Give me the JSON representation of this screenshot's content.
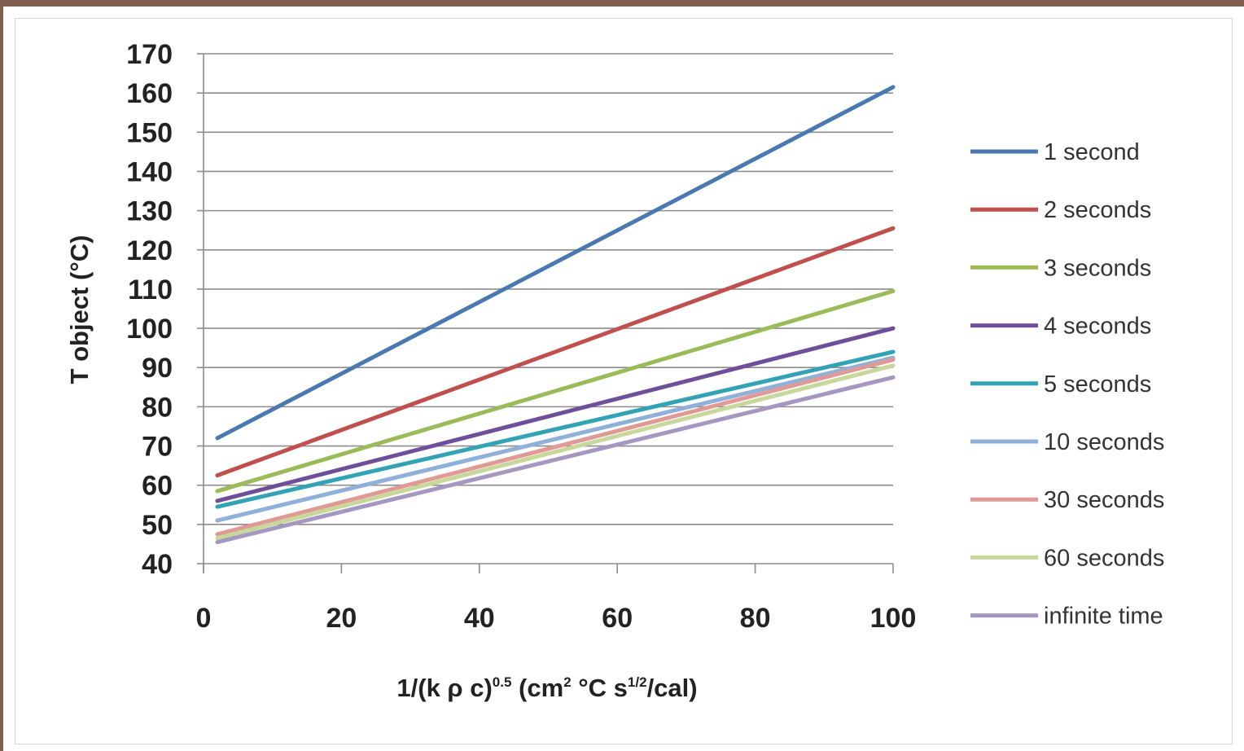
{
  "chart_data": {
    "type": "line",
    "xlabel_parts": {
      "a": "1/(k ρ c)",
      "a_sup": "0.5",
      "b": " (cm",
      "b_sup": "2",
      "c": " °C s",
      "c_sup": "1/2",
      "d": "/cal)"
    },
    "ylabel": "T object (°C)",
    "xlim": [
      0,
      100
    ],
    "ylim": [
      40,
      170
    ],
    "x_ticks": [
      "0",
      "20",
      "40",
      "60",
      "80",
      "100"
    ],
    "y_ticks": [
      "40",
      "50",
      "60",
      "70",
      "80",
      "90",
      "100",
      "110",
      "120",
      "130",
      "140",
      "150",
      "160",
      "170"
    ],
    "grid": "horizontal",
    "legend_position": "right",
    "series": [
      {
        "name": "1 second",
        "color": "#4a78b0",
        "x": [
          2,
          100
        ],
        "y": [
          72,
          161.5
        ]
      },
      {
        "name": "2 seconds",
        "color": "#c0504d",
        "x": [
          2,
          100
        ],
        "y": [
          62.5,
          125.5
        ]
      },
      {
        "name": "3 seconds",
        "color": "#9bbb59",
        "x": [
          2,
          100
        ],
        "y": [
          58.5,
          109.5
        ]
      },
      {
        "name": "4 seconds",
        "color": "#6f4f9a",
        "x": [
          2,
          100
        ],
        "y": [
          56,
          100
        ]
      },
      {
        "name": "5 seconds",
        "color": "#31a3b4",
        "x": [
          2,
          100
        ],
        "y": [
          54.5,
          94
        ]
      },
      {
        "name": "10 seconds",
        "color": "#8fb0d8",
        "x": [
          2,
          100
        ],
        "y": [
          51,
          92.5
        ]
      },
      {
        "name": "30 seconds",
        "color": "#e09a96",
        "x": [
          2,
          100
        ],
        "y": [
          47.5,
          92
        ]
      },
      {
        "name": "60 seconds",
        "color": "#c8d89a",
        "x": [
          2,
          100
        ],
        "y": [
          46.5,
          90.5
        ]
      },
      {
        "name": "infinite time",
        "color": "#a498c0",
        "x": [
          2,
          100
        ],
        "y": [
          45.5,
          87.5
        ]
      }
    ]
  }
}
